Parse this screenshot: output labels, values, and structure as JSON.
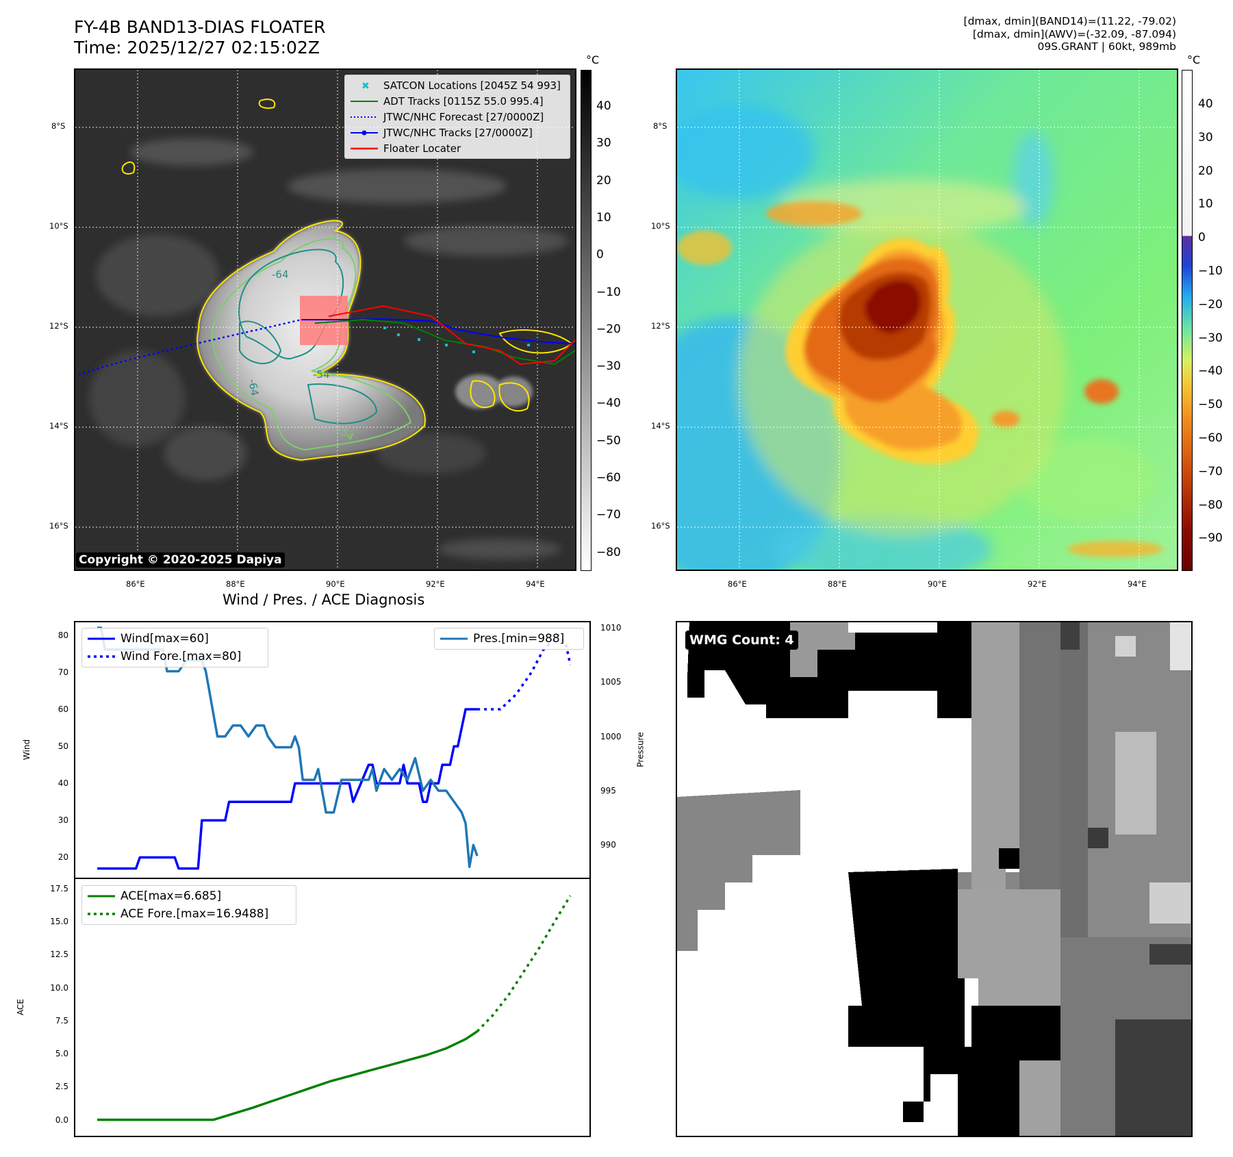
{
  "header": {
    "title_line1": "FY-4B BAND13-DIAS FLOATER",
    "title_line2": "Time: 2025/12/27 02:15:02Z",
    "info_line1": "[dmax, dmin](BAND14)=(11.22, -79.02)",
    "info_line2": "[dmax, dmin](AWV)=(-32.09, -87.094)",
    "info_line3": "09S.GRANT | 60kt, 989mb"
  },
  "map": {
    "lat_labels": [
      "8°S",
      "10°S",
      "12°S",
      "14°S",
      "16°S"
    ],
    "lon_labels": [
      "86°E",
      "88°E",
      "90°E",
      "92°E",
      "94°E"
    ],
    "copyright": "Copyright © 2020-2025 Dapiya",
    "contour_labels": [
      "-64",
      "-64",
      "-54",
      "-54"
    ],
    "legend": [
      {
        "label": "SATCON Locations [2045Z 54 993]",
        "color": "#17becf",
        "style": "x"
      },
      {
        "label": "ADT Tracks [0115Z 55.0 995.4]",
        "color": "#008000",
        "style": "solid"
      },
      {
        "label": "JTWC/NHC Forecast [27/0000Z]",
        "color": "#0000ff",
        "style": "dotted"
      },
      {
        "label": "JTWC/NHC Tracks [27/0000Z]",
        "color": "#0000ff",
        "style": "marker"
      },
      {
        "label": "Floater Locater",
        "color": "#ff0000",
        "style": "solid"
      }
    ]
  },
  "colorbars": {
    "unit": "°C",
    "left_ticks": [
      "40",
      "30",
      "20",
      "10",
      "0",
      "−10",
      "−20",
      "−30",
      "−40",
      "−50",
      "−60",
      "−70",
      "−80"
    ],
    "right_ticks": [
      "40",
      "30",
      "20",
      "10",
      "0",
      "−10",
      "−20",
      "−30",
      "−40",
      "−50",
      "−60",
      "−70",
      "−80",
      "−90"
    ]
  },
  "diagnosis": {
    "title": "Wind / Pres. / ACE Diagnosis",
    "wind_axis_label": "Wind",
    "pressure_axis_label": "Pressure",
    "ace_axis_label": "ACE",
    "wind_ticks": [
      "80",
      "70",
      "60",
      "50",
      "40",
      "30",
      "20"
    ],
    "pressure_ticks": [
      "1010",
      "1005",
      "1000",
      "995",
      "990"
    ],
    "ace_ticks": [
      "17.5",
      "15.0",
      "12.5",
      "10.0",
      "7.5",
      "5.0",
      "2.5",
      "0.0"
    ],
    "legend_wind": "Wind[max=60]",
    "legend_wind_fore": "Wind Fore.[max=80]",
    "legend_pres": "Pres.[min=988]",
    "legend_ace": "ACE[max=6.685]",
    "legend_ace_fore": "ACE Fore.[max=16.9488]"
  },
  "wmg": {
    "label": "WMG Count: 4"
  },
  "chart_data": [
    {
      "type": "line",
      "title": "Wind / Pres. / ACE Diagnosis",
      "ylabel": "Wind",
      "ylim": [
        16,
        82
      ],
      "series": [
        {
          "name": "Wind[max=60]",
          "color": "#0000ff",
          "x": [
            0,
            10,
            11,
            20,
            21,
            26,
            27,
            33,
            34,
            46,
            47,
            50,
            51,
            65,
            66,
            70,
            71,
            72,
            73,
            74,
            75,
            76,
            77,
            78,
            79,
            80,
            81,
            82,
            83,
            84,
            85,
            86,
            87,
            88,
            89,
            90,
            91,
            92,
            93,
            94,
            95,
            96,
            97,
            98
          ],
          "values": [
            17,
            17,
            20,
            20,
            17,
            17,
            30,
            30,
            35,
            35,
            35,
            35,
            40,
            40,
            35,
            45,
            45,
            40,
            40,
            40,
            40,
            40,
            40,
            40,
            45,
            40,
            40,
            40,
            40,
            35,
            35,
            40,
            40,
            40,
            45,
            45,
            45,
            50,
            50,
            55,
            60,
            60,
            60,
            60
          ]
        },
        {
          "name": "Wind Fore.[max=80]",
          "color": "#0000ff",
          "dashed": true,
          "x": [
            98,
            101,
            104,
            108,
            112,
            115,
            119,
            121,
            122
          ],
          "values": [
            60,
            60,
            60,
            64,
            70,
            76,
            80,
            77,
            72
          ]
        },
        {
          "name": "Pres.[min=988]",
          "color": "#1f77b4",
          "axis": "right",
          "ylim": [
            987.5,
            1010
          ],
          "x": [
            0,
            1,
            2,
            3,
            4,
            5,
            6,
            8,
            10,
            12,
            14,
            15,
            16,
            17,
            18,
            19,
            21,
            23,
            25,
            27,
            28,
            30,
            31,
            33,
            35,
            36,
            37,
            39,
            41,
            43,
            44,
            46,
            47,
            48,
            49,
            50,
            51,
            52,
            53,
            54,
            56,
            57,
            59,
            61,
            63,
            65,
            67,
            69,
            70,
            71,
            72,
            74,
            76,
            78,
            80,
            82,
            84,
            86,
            88,
            90,
            92,
            94,
            95,
            96,
            97,
            98
          ],
          "values": [
            1010,
            1010,
            1008,
            1008,
            1008,
            1008,
            1008,
            1008,
            1008,
            1008,
            1008,
            1008,
            1008,
            1008,
            1006,
            1006,
            1006,
            1007,
            1007,
            1007,
            1006,
            1002,
            1000,
            1000,
            1001,
            1001,
            1001,
            1000,
            1001,
            1001,
            1000,
            999,
            999,
            999,
            999,
            999,
            1000,
            999,
            996,
            996,
            996,
            997,
            993,
            993,
            996,
            996,
            996,
            996,
            996,
            997,
            995,
            997,
            996,
            997,
            996,
            998,
            995,
            996,
            995,
            995,
            994,
            993,
            992,
            988,
            990,
            989
          ]
        }
      ]
    },
    {
      "type": "line",
      "title": "",
      "ylabel": "ACE",
      "ylim": [
        -0.8,
        17.8
      ],
      "series": [
        {
          "name": "ACE[max=6.685]",
          "color": "#008000",
          "x": [
            0,
            10,
            20,
            30,
            35,
            40,
            45,
            50,
            55,
            60,
            65,
            70,
            75,
            80,
            85,
            90,
            95,
            98
          ],
          "values": [
            0.0,
            0.0,
            0.0,
            0.0,
            0.45,
            0.9,
            1.4,
            1.9,
            2.4,
            2.9,
            3.3,
            3.7,
            4.1,
            4.5,
            4.9,
            5.4,
            6.1,
            6.685
          ]
        },
        {
          "name": "ACE Fore.[max=16.9488]",
          "color": "#008000",
          "dashed": true,
          "x": [
            98,
            102,
            106,
            110,
            114,
            118,
            122
          ],
          "values": [
            6.685,
            7.9,
            9.4,
            11.2,
            13.0,
            15.0,
            16.9488
          ]
        }
      ]
    }
  ]
}
